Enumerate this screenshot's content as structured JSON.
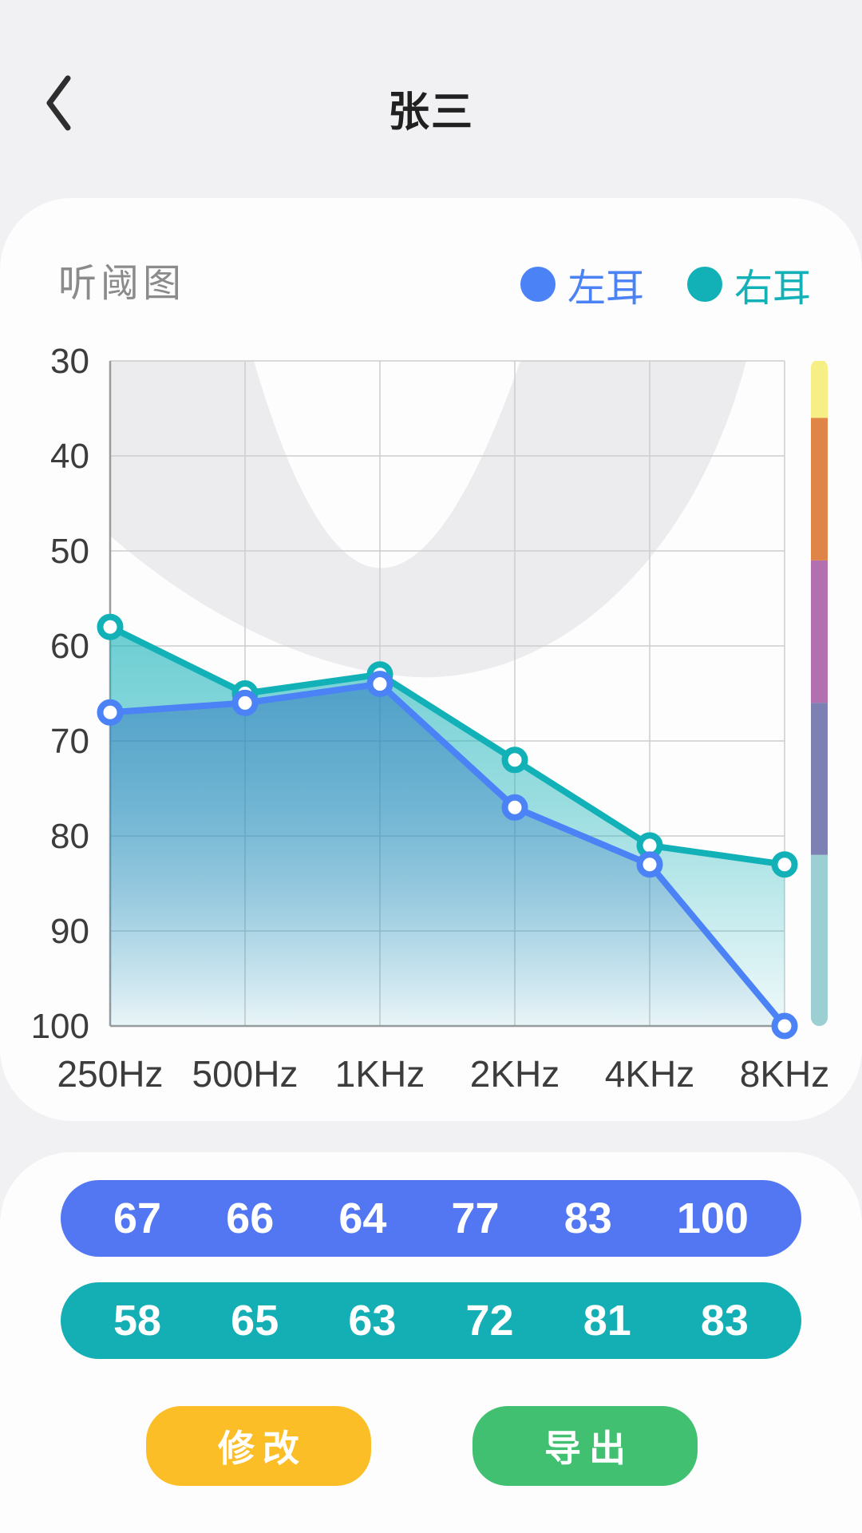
{
  "header": {
    "title": "张三",
    "back_icon": "chevron-left"
  },
  "chart_card": {
    "title": "听阈图",
    "legend": [
      {
        "label": "左耳",
        "color": "#4b82f5"
      },
      {
        "label": "右耳",
        "color": "#12b1b7"
      }
    ],
    "chart_data": {
      "type": "line",
      "title": "听阈图",
      "x_labels": [
        "250Hz",
        "500Hz",
        "1KHz",
        "2KHz",
        "4KHz",
        "8KHz"
      ],
      "y_ticks": [
        30,
        40,
        50,
        60,
        70,
        80,
        90,
        100
      ],
      "y_axis_inverted": true,
      "ylim": [
        30,
        100
      ],
      "grid": true,
      "series": [
        {
          "name": "左耳",
          "color": "#4b82f5",
          "values": [
            67,
            66,
            64,
            77,
            83,
            100
          ]
        },
        {
          "name": "右耳",
          "color": "#12b1b7",
          "values": [
            58,
            65,
            63,
            72,
            81,
            83
          ]
        }
      ],
      "marker": {
        "fill": "#ffffff",
        "ring_width": 8,
        "radius": 12.5
      },
      "background_shape": {
        "name": "speech-banana-region",
        "color": "#ececee"
      },
      "severity_bar": [
        {
          "from": 30,
          "to": 36,
          "color": "#f6ef85"
        },
        {
          "from": 36,
          "to": 51,
          "color": "#df8548"
        },
        {
          "from": 51,
          "to": 66,
          "color": "#b270b0"
        },
        {
          "from": 66,
          "to": 82,
          "color": "#7d80b2"
        },
        {
          "from": 82,
          "to": 100,
          "color": "#9bcfd1"
        }
      ],
      "grid_color": "#cdcdcd",
      "axis_color": "#9b9b9b",
      "tick_label_color": "#3c3c3c"
    }
  },
  "values_card": {
    "rows": [
      {
        "name": "left-ear",
        "color": "#5377f2",
        "values": [
          "67",
          "66",
          "64",
          "77",
          "83",
          "100"
        ]
      },
      {
        "name": "right-ear",
        "color": "#13afb4",
        "values": [
          "58",
          "65",
          "63",
          "72",
          "81",
          "83"
        ]
      }
    ],
    "buttons": [
      {
        "label": "修改",
        "color": "#fbbe27"
      },
      {
        "label": "导出",
        "color": "#40c070"
      }
    ]
  }
}
